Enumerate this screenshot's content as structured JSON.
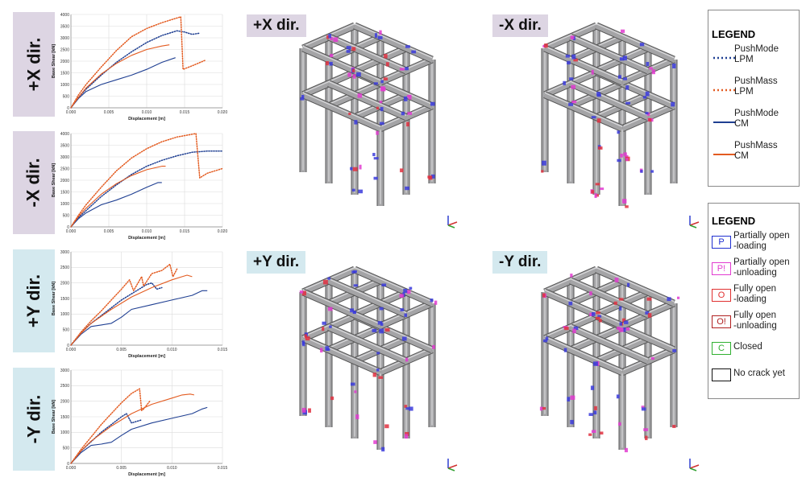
{
  "colors": {
    "tab_x": "#ddd5e3",
    "tab_y": "#d4e9ef",
    "pushmode": "#1f3f92",
    "pushmass": "#e35b20",
    "frame": "#a4a4a6"
  },
  "rows": [
    {
      "tab": "+X dir.",
      "panel_label": "+X dir.",
      "tab_color": "tab_x"
    },
    {
      "tab": "-X dir.",
      "panel_label": "-X dir.",
      "tab_color": "tab_x"
    },
    {
      "tab": "+Y dir.",
      "panel_label": "+Y dir.",
      "tab_color": "tab_y"
    },
    {
      "tab": "-Y dir.",
      "panel_label": "-Y dir.",
      "tab_color": "tab_y"
    }
  ],
  "chart_data": [
    {
      "type": "line",
      "xlabel": "Displacement [m]",
      "ylabel": "Base Shear [kN]",
      "xlim": [
        0,
        0.02
      ],
      "ylim": [
        0,
        4000
      ],
      "xticks": [
        "0.000",
        "0.005",
        "0.010",
        "0.015",
        "0.020"
      ],
      "yticks": [
        "0",
        "500",
        "1000",
        "1500",
        "2000",
        "2500",
        "3000",
        "3500",
        "4000"
      ],
      "grid": true,
      "series": [
        {
          "name": "PushMode LPM",
          "style": "dotted",
          "color": "pushmode",
          "x": [
            0,
            0.001,
            0.002,
            0.004,
            0.006,
            0.008,
            0.01,
            0.012,
            0.014,
            0.015,
            0.016,
            0.017
          ],
          "y": [
            0,
            450,
            800,
            1400,
            1950,
            2400,
            2800,
            3100,
            3300,
            3250,
            3150,
            3200
          ]
        },
        {
          "name": "PushMass LPM",
          "style": "dotted",
          "color": "pushmass",
          "x": [
            0,
            0.001,
            0.002,
            0.004,
            0.006,
            0.008,
            0.01,
            0.012,
            0.0145,
            0.0148,
            0.016,
            0.0178
          ],
          "y": [
            0,
            550,
            1000,
            1750,
            2450,
            3050,
            3400,
            3650,
            3900,
            1650,
            1800,
            2050
          ]
        },
        {
          "name": "PushMode CM",
          "style": "solid",
          "color": "pushmode",
          "x": [
            0,
            0.001,
            0.002,
            0.004,
            0.006,
            0.008,
            0.01,
            0.012,
            0.0138
          ],
          "y": [
            0,
            400,
            700,
            1000,
            1200,
            1400,
            1650,
            1950,
            2150
          ]
        },
        {
          "name": "PushMass CM",
          "style": "solid",
          "color": "pushmass",
          "x": [
            0,
            0.001,
            0.002,
            0.004,
            0.006,
            0.008,
            0.01,
            0.012,
            0.013
          ],
          "y": [
            0,
            450,
            850,
            1450,
            1900,
            2250,
            2500,
            2650,
            2700
          ]
        }
      ]
    },
    {
      "type": "line",
      "xlabel": "Displacement [m]",
      "ylabel": "Base Shear [kN]",
      "xlim": [
        0,
        0.02
      ],
      "ylim": [
        0,
        4000
      ],
      "xticks": [
        "0.000",
        "0.005",
        "0.010",
        "0.015",
        "0.020"
      ],
      "yticks": [
        "0",
        "500",
        "1000",
        "1500",
        "2000",
        "2500",
        "3000",
        "3500",
        "4000"
      ],
      "grid": true,
      "series": [
        {
          "name": "PushMode LPM",
          "style": "dotted",
          "color": "pushmode",
          "x": [
            0,
            0.001,
            0.002,
            0.004,
            0.006,
            0.008,
            0.01,
            0.012,
            0.014,
            0.016,
            0.018,
            0.02
          ],
          "y": [
            0,
            400,
            700,
            1300,
            1800,
            2250,
            2600,
            2850,
            3050,
            3200,
            3250,
            3250
          ]
        },
        {
          "name": "PushMass LPM",
          "style": "dotted",
          "color": "pushmass",
          "x": [
            0,
            0.001,
            0.002,
            0.004,
            0.006,
            0.008,
            0.01,
            0.012,
            0.014,
            0.0165,
            0.017,
            0.018,
            0.02
          ],
          "y": [
            0,
            500,
            950,
            1700,
            2400,
            2950,
            3350,
            3650,
            3850,
            4000,
            2100,
            2300,
            2500
          ]
        },
        {
          "name": "PushMode CM",
          "style": "solid",
          "color": "pushmode",
          "x": [
            0,
            0.001,
            0.002,
            0.004,
            0.006,
            0.008,
            0.01,
            0.0115,
            0.012
          ],
          "y": [
            0,
            350,
            600,
            950,
            1150,
            1400,
            1700,
            1900,
            1900
          ]
        },
        {
          "name": "PushMass CM",
          "style": "solid",
          "color": "pushmass",
          "x": [
            0,
            0.001,
            0.002,
            0.004,
            0.006,
            0.008,
            0.01,
            0.012,
            0.0125
          ],
          "y": [
            0,
            450,
            800,
            1400,
            1850,
            2200,
            2450,
            2600,
            2600
          ]
        }
      ]
    },
    {
      "type": "line",
      "xlabel": "Displacement [m]",
      "ylabel": "Base Shear [kN]",
      "xlim": [
        0,
        0.015
      ],
      "ylim": [
        0,
        3000
      ],
      "xticks": [
        "0.000",
        "0.005",
        "0.010",
        "0.015"
      ],
      "yticks": [
        "0",
        "500",
        "1000",
        "1500",
        "2000",
        "2500",
        "3000"
      ],
      "grid": true,
      "series": [
        {
          "name": "PushMode LPM",
          "style": "dotted",
          "color": "pushmode",
          "x": [
            0,
            0.001,
            0.002,
            0.003,
            0.004,
            0.005,
            0.006,
            0.007,
            0.0075,
            0.008,
            0.0085,
            0.009
          ],
          "y": [
            0,
            400,
            700,
            950,
            1200,
            1450,
            1650,
            1850,
            1950,
            2000,
            1800,
            1850
          ]
        },
        {
          "name": "PushMass LPM",
          "style": "dotted",
          "color": "pushmass",
          "x": [
            0,
            0.001,
            0.002,
            0.003,
            0.004,
            0.005,
            0.0058,
            0.0062,
            0.007,
            0.0072,
            0.008,
            0.009,
            0.0098,
            0.0101,
            0.0105
          ],
          "y": [
            0,
            420,
            780,
            1100,
            1450,
            1800,
            2100,
            1750,
            2200,
            1900,
            2300,
            2400,
            2600,
            2200,
            2450
          ]
        },
        {
          "name": "PushMode CM",
          "style": "solid",
          "color": "pushmode",
          "x": [
            0,
            0.001,
            0.002,
            0.003,
            0.004,
            0.005,
            0.006,
            0.008,
            0.01,
            0.012,
            0.013,
            0.0135
          ],
          "y": [
            0,
            350,
            600,
            650,
            700,
            900,
            1150,
            1300,
            1450,
            1600,
            1750,
            1750
          ]
        },
        {
          "name": "PushMass CM",
          "style": "solid",
          "color": "pushmass",
          "x": [
            0,
            0.001,
            0.002,
            0.004,
            0.006,
            0.008,
            0.01,
            0.011,
            0.0115,
            0.012
          ],
          "y": [
            0,
            380,
            700,
            1150,
            1550,
            1850,
            2100,
            2200,
            2250,
            2200
          ]
        }
      ]
    },
    {
      "type": "line",
      "xlabel": "Displacement [m]",
      "ylabel": "Base Shear [kN]",
      "xlim": [
        0,
        0.015
      ],
      "ylim": [
        0,
        3000
      ],
      "xticks": [
        "0.000",
        "0.005",
        "0.010",
        "0.015"
      ],
      "yticks": [
        "0",
        "500",
        "1000",
        "1500",
        "2000",
        "2500",
        "3000"
      ],
      "grid": true,
      "series": [
        {
          "name": "PushMode LPM",
          "style": "dotted",
          "color": "pushmode",
          "x": [
            0,
            0.001,
            0.002,
            0.003,
            0.004,
            0.005,
            0.0055,
            0.006,
            0.0065,
            0.007
          ],
          "y": [
            0,
            400,
            700,
            1000,
            1250,
            1500,
            1600,
            1300,
            1350,
            1400
          ]
        },
        {
          "name": "PushMass LPM",
          "style": "dotted",
          "color": "pushmass",
          "x": [
            0,
            0.001,
            0.002,
            0.003,
            0.004,
            0.005,
            0.006,
            0.0068,
            0.007,
            0.0072,
            0.0078
          ],
          "y": [
            0,
            450,
            850,
            1250,
            1600,
            1950,
            2250,
            2400,
            1700,
            1750,
            2000
          ]
        },
        {
          "name": "PushMode CM",
          "style": "solid",
          "color": "pushmode",
          "x": [
            0,
            0.001,
            0.002,
            0.003,
            0.004,
            0.005,
            0.006,
            0.008,
            0.01,
            0.012,
            0.013,
            0.0135
          ],
          "y": [
            0,
            350,
            580,
            620,
            680,
            900,
            1100,
            1300,
            1450,
            1600,
            1750,
            1800
          ]
        },
        {
          "name": "PushMass CM",
          "style": "solid",
          "color": "pushmass",
          "x": [
            0,
            0.001,
            0.002,
            0.004,
            0.006,
            0.008,
            0.01,
            0.011,
            0.0118,
            0.0122
          ],
          "y": [
            0,
            400,
            720,
            1200,
            1600,
            1900,
            2100,
            2200,
            2230,
            2200
          ]
        }
      ]
    }
  ],
  "legend_lines": {
    "title": "LEGEND",
    "items": [
      {
        "line1": "PushMode",
        "line2": "LPM",
        "color": "pushmode",
        "style": "dotted"
      },
      {
        "line1": "PushMass",
        "line2": "LPM",
        "color": "pushmass",
        "style": "dotted"
      },
      {
        "line1": "PushMode",
        "line2": "CM",
        "color": "pushmode",
        "style": "solid"
      },
      {
        "line1": "PushMass",
        "line2": "CM",
        "color": "pushmass",
        "style": "solid"
      }
    ]
  },
  "legend_cracks": {
    "title": "LEGEND",
    "items": [
      {
        "symbol": "P",
        "line1": "Partially open",
        "line2": "-loading",
        "color": "#1f2fd0"
      },
      {
        "symbol": "P!",
        "line1": "Partially open",
        "line2": "-unloading",
        "color": "#e23bd0"
      },
      {
        "symbol": "O",
        "line1": "Fully open",
        "line2": "-loading",
        "color": "#e03030"
      },
      {
        "symbol": "O!",
        "line1": "Fully open",
        "line2": "-unloading",
        "color": "#b02020"
      },
      {
        "symbol": "C",
        "line1": "Closed",
        "line2": "",
        "color": "#2fb030"
      },
      {
        "symbol": "",
        "line1": "No crack yet",
        "line2": "",
        "color": "#111111"
      }
    ]
  }
}
